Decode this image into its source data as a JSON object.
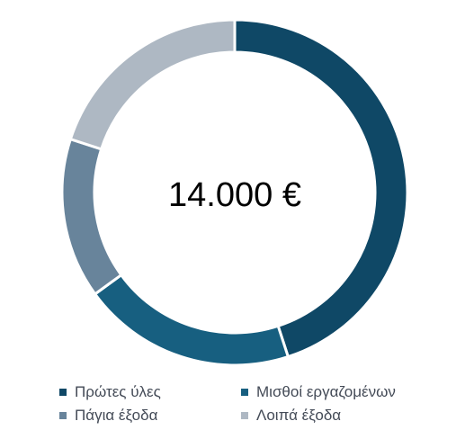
{
  "chart_data": {
    "type": "pie",
    "center_label": "14.000 €",
    "categories": [
      "Πρώτες ύλες",
      "Μισθοί εργαζομένων",
      "Πάγια έξοδα",
      "Λοιπά έξοδα"
    ],
    "values": [
      45,
      20,
      15,
      20
    ],
    "colors": [
      "#0f4866",
      "#175f80",
      "#68849b",
      "#aeb8c3"
    ],
    "legend": {
      "placement": "bottom",
      "entries": [
        "Πρώτες ύλες",
        "Μισθοί εργαζομένων",
        "Πάγια έξοδα",
        "Λοιπά έξοδα"
      ]
    }
  }
}
